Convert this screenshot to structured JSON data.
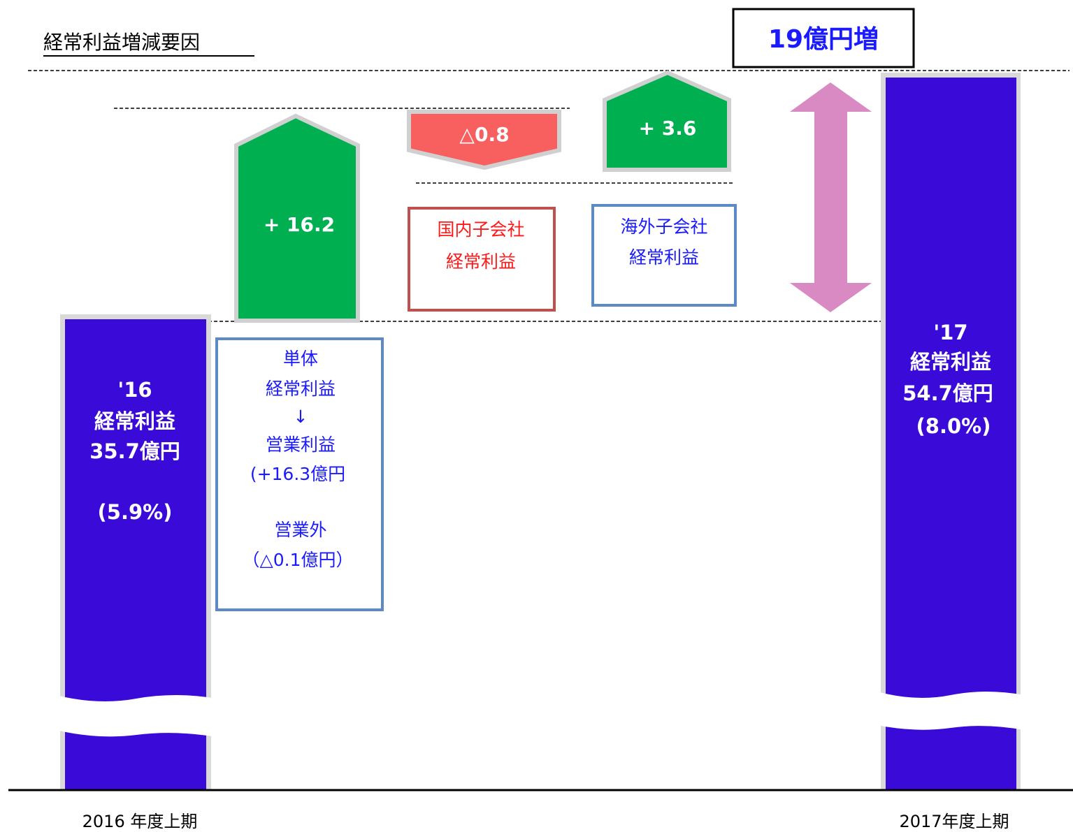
{
  "title": "経常利益増減要因",
  "total_change": "19億円増",
  "start_bar": {
    "lines": [
      "'16",
      "経常利益",
      "35.7億円",
      "(5.9%)"
    ],
    "period": "2016 年度上期"
  },
  "end_bar": {
    "lines": [
      "'17",
      "経常利益",
      "54.7億円",
      "(8.0%)"
    ],
    "period": "2017年度上期"
  },
  "steps": [
    {
      "value_label": "+ 16.2",
      "note_lines": [
        "単体",
        "経常利益",
        "↓",
        "営業利益",
        "(+16.3億円",
        "営業外",
        "（△0.1億円）"
      ]
    },
    {
      "value_label": "△0.8",
      "note_lines": [
        "国内子会社",
        "経常利益"
      ]
    },
    {
      "value_label": "+ 3.6",
      "note_lines": [
        "海外子会社",
        "経常利益"
      ]
    }
  ]
}
